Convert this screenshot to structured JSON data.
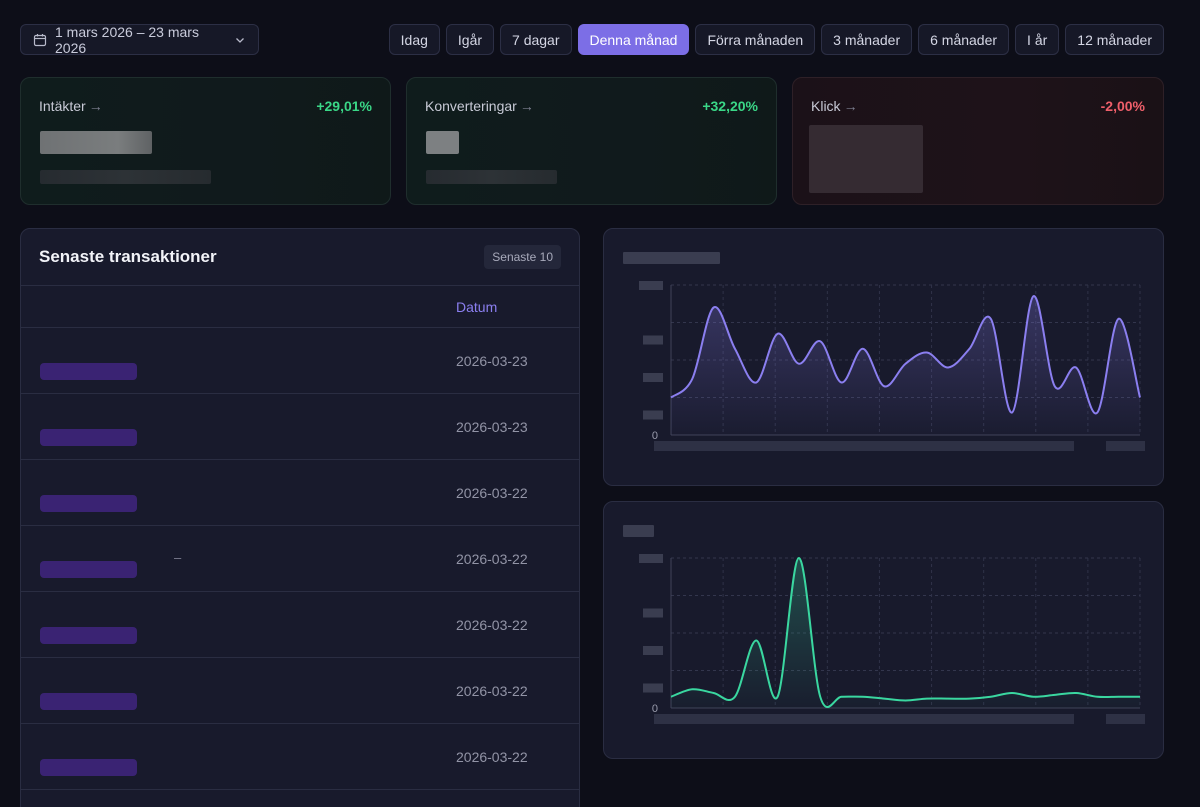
{
  "date_range": {
    "label": "1 mars 2026 – 23 mars 2026",
    "calendar_icon": "calendar-icon",
    "chevron_icon": "chevron-down-icon"
  },
  "presets": [
    {
      "label": "Idag",
      "active": false
    },
    {
      "label": "Igår",
      "active": false
    },
    {
      "label": "7 dagar",
      "active": false
    },
    {
      "label": "Denna månad",
      "active": true
    },
    {
      "label": "Förra månaden",
      "active": false
    },
    {
      "label": "3 månader",
      "active": false
    },
    {
      "label": "6 månader",
      "active": false
    },
    {
      "label": "I år",
      "active": false
    },
    {
      "label": "12 månader",
      "active": false
    }
  ],
  "kpis": [
    {
      "label": "Intäkter",
      "arrow": "→",
      "delta": "+29,01%",
      "trend": "up"
    },
    {
      "label": "Konverteringar",
      "arrow": "→",
      "delta": "+32,20%",
      "trend": "up"
    },
    {
      "label": "Klick",
      "arrow": "→",
      "delta": "-2,00%",
      "trend": "down"
    }
  ],
  "transactions": {
    "title": "Senaste transaktioner",
    "badge": "Senaste 10",
    "date_column": "Datum",
    "rows": [
      {
        "date": "2026-03-23",
        "note": ""
      },
      {
        "date": "2026-03-23",
        "note": ""
      },
      {
        "date": "2026-03-22",
        "note": ""
      },
      {
        "date": "2026-03-22",
        "note": "–"
      },
      {
        "date": "2026-03-22",
        "note": ""
      },
      {
        "date": "2026-03-22",
        "note": ""
      },
      {
        "date": "2026-03-22",
        "note": ""
      }
    ]
  },
  "charts": [
    {
      "zero_label": "0",
      "color": "#8b7ff0",
      "ylim": [
        0,
        4
      ],
      "values": [
        1.0,
        1.5,
        3.4,
        2.3,
        1.4,
        2.7,
        1.9,
        2.5,
        1.4,
        2.3,
        1.3,
        1.9,
        2.2,
        1.8,
        2.3,
        3.1,
        0.6,
        3.7,
        1.3,
        1.8,
        0.6,
        3.1,
        1.0
      ]
    },
    {
      "zero_label": "0",
      "color": "#3ad7a0",
      "ylim": [
        0,
        4
      ],
      "values": [
        0.3,
        0.5,
        0.4,
        0.3,
        1.8,
        0.3,
        4.0,
        0.3,
        0.3,
        0.3,
        0.25,
        0.2,
        0.25,
        0.25,
        0.25,
        0.3,
        0.4,
        0.3,
        0.35,
        0.4,
        0.3,
        0.3,
        0.3
      ]
    }
  ]
}
